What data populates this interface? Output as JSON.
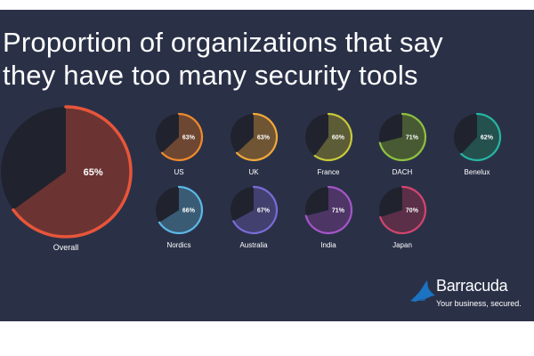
{
  "title_lines": [
    "Proportion of organizations that say",
    "they have too many security tools"
  ],
  "brand": {
    "name": "Barracuda",
    "tagline": "Your business, secured."
  },
  "colors": {
    "background": "#2a3147",
    "remainder": "#20232e",
    "brand_blue": "#1b73c2"
  },
  "chart_data": {
    "type": "pie",
    "title": "Proportion of organizations that say they have too many security tools",
    "unit": "%",
    "overall": {
      "label": "Overall",
      "value": 65,
      "display": "65%",
      "color": "#e8553a",
      "fill": "#6b3433"
    },
    "regions": [
      {
        "label": "US",
        "value": 63,
        "display": "63%",
        "color": "#f08a2c",
        "fill": "#6e4733"
      },
      {
        "label": "UK",
        "value": 63,
        "display": "63%",
        "color": "#f2a93a",
        "fill": "#6f5533"
      },
      {
        "label": "France",
        "value": 60,
        "display": "60%",
        "color": "#c9c93a",
        "fill": "#5c5c36"
      },
      {
        "label": "DACH",
        "value": 71,
        "display": "71%",
        "color": "#8fc13f",
        "fill": "#475a33"
      },
      {
        "label": "Benelux",
        "value": 62,
        "display": "62%",
        "color": "#25b5a2",
        "fill": "#24504e"
      },
      {
        "label": "Nordics",
        "value": 66,
        "display": "66%",
        "color": "#5cb8e6",
        "fill": "#3a5b74"
      },
      {
        "label": "Australia",
        "value": 67,
        "display": "67%",
        "color": "#7a6bd8",
        "fill": "#41406f"
      },
      {
        "label": "India",
        "value": 71,
        "display": "71%",
        "color": "#a456c8",
        "fill": "#4d3566"
      },
      {
        "label": "Japan",
        "value": 70,
        "display": "70%",
        "color": "#d2456e",
        "fill": "#5b2f47"
      }
    ]
  }
}
